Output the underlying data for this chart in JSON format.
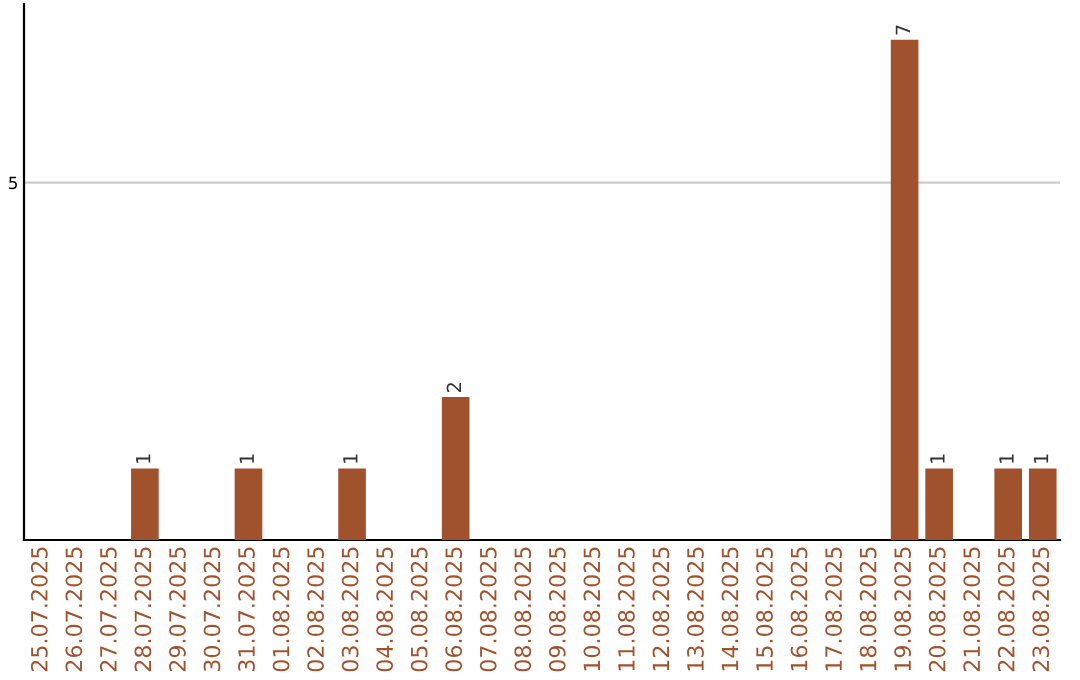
{
  "chart_data": {
    "type": "bar",
    "categories": [
      "25.07.2025",
      "26.07.2025",
      "27.07.2025",
      "28.07.2025",
      "29.07.2025",
      "30.07.2025",
      "31.07.2025",
      "01.08.2025",
      "02.08.2025",
      "03.08.2025",
      "04.08.2025",
      "05.08.2025",
      "06.08.2025",
      "07.08.2025",
      "08.08.2025",
      "09.08.2025",
      "10.08.2025",
      "11.08.2025",
      "12.08.2025",
      "13.08.2025",
      "14.08.2025",
      "15.08.2025",
      "16.08.2025",
      "17.08.2025",
      "18.08.2025",
      "19.08.2025",
      "20.08.2025",
      "21.08.2025",
      "22.08.2025",
      "23.08.2025"
    ],
    "values": [
      null,
      null,
      null,
      1,
      null,
      null,
      1,
      null,
      null,
      1,
      null,
      null,
      2,
      null,
      null,
      null,
      null,
      null,
      null,
      null,
      null,
      null,
      null,
      null,
      null,
      7,
      1,
      null,
      1,
      1
    ],
    "color": "#a0522d",
    "ylim": [
      0,
      7.5
    ],
    "yticks": [
      5
    ],
    "grid": "y",
    "data_labels": true
  }
}
